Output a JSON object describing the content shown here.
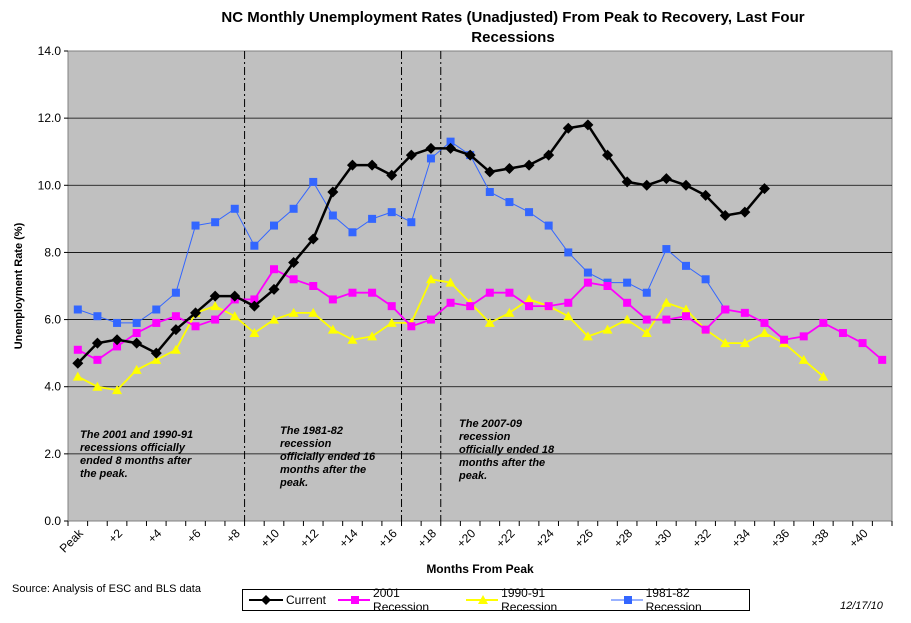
{
  "chart_data": {
    "type": "line",
    "title_lines": [
      "NC Monthly Unemployment Rates (Unadjusted) From Peak to Recovery, Last Four",
      "Recessions"
    ],
    "xlabel": "Months From Peak",
    "ylabel": "Unemployment Rate (%)",
    "ylim": [
      0,
      14
    ],
    "yticks": [
      "0.0",
      "2.0",
      "4.0",
      "6.0",
      "8.0",
      "10.0",
      "12.0",
      "14.0"
    ],
    "xtick_labels": [
      "Peak",
      "+2",
      "+4",
      "+6",
      "+8",
      "+10",
      "+12",
      "+14",
      "+16",
      "+18",
      "+20",
      "+22",
      "+24",
      "+26",
      "+28",
      "+30",
      "+32",
      "+34",
      "+36",
      "+38",
      "+40"
    ],
    "grid": "horizontal",
    "legend_position": "bottom",
    "vlines_after_month": [
      8,
      16,
      18
    ],
    "series": [
      {
        "name": "Current",
        "color": "#000000",
        "marker": "diamond",
        "values": [
          4.7,
          5.3,
          5.4,
          5.3,
          5.0,
          5.7,
          6.2,
          6.7,
          6.7,
          6.4,
          6.9,
          7.7,
          8.4,
          9.8,
          10.6,
          10.6,
          10.3,
          10.9,
          11.1,
          11.1,
          10.9,
          10.4,
          10.5,
          10.6,
          10.9,
          11.7,
          11.8,
          10.9,
          10.1,
          10.0,
          10.2,
          10.0,
          9.7,
          9.1,
          9.2,
          9.9
        ]
      },
      {
        "name": "2001 Recession",
        "color": "#ff00ff",
        "marker": "square",
        "values": [
          5.1,
          4.8,
          5.2,
          5.6,
          5.9,
          6.1,
          5.8,
          6.0,
          6.6,
          6.6,
          7.5,
          7.2,
          7.0,
          6.6,
          6.8,
          6.8,
          6.4,
          5.8,
          6.0,
          6.5,
          6.4,
          6.8,
          6.8,
          6.4,
          6.4,
          6.5,
          7.1,
          7.0,
          6.5,
          6.0,
          6.0,
          6.1,
          5.7,
          6.3,
          6.2,
          5.9,
          5.4,
          5.5,
          5.9,
          5.6,
          5.3,
          4.8
        ]
      },
      {
        "name": "1990-91 Recession",
        "color": "#ffff00",
        "marker": "triangle",
        "values": [
          4.3,
          4.0,
          3.9,
          4.5,
          4.8,
          5.1,
          6.2,
          6.4,
          6.1,
          5.6,
          6.0,
          6.2,
          6.2,
          5.7,
          5.4,
          5.5,
          5.9,
          5.9,
          7.2,
          7.1,
          6.5,
          5.9,
          6.2,
          6.6,
          6.4,
          6.1,
          5.5,
          5.7,
          6.0,
          5.6,
          6.5,
          6.3,
          5.7,
          5.3,
          5.3,
          5.6,
          5.3,
          4.8,
          4.3
        ]
      },
      {
        "name": "1981-82 Recession",
        "color": "#3366ff",
        "marker": "square",
        "values": [
          6.3,
          6.1,
          5.9,
          5.9,
          6.3,
          6.8,
          8.8,
          8.9,
          9.3,
          8.2,
          8.8,
          9.3,
          10.1,
          9.1,
          8.6,
          9.0,
          9.2,
          8.9,
          10.8,
          11.3,
          10.9,
          9.8,
          9.5,
          9.2,
          8.8,
          8.0,
          7.4,
          7.1,
          7.1,
          6.8,
          8.1,
          7.6,
          7.2,
          6.3
        ]
      }
    ],
    "annotations": [
      "The 2001 and 1990-91 recessions officially ended 8 months after the peak.",
      "The 1981-82 recession officially ended 16 months after the peak.",
      "The 2007-09 recession officially ended 18 months after the peak."
    ]
  },
  "footer": {
    "source": "Source:  Analysis of  ESC and BLS data",
    "date": "12/17/10"
  }
}
